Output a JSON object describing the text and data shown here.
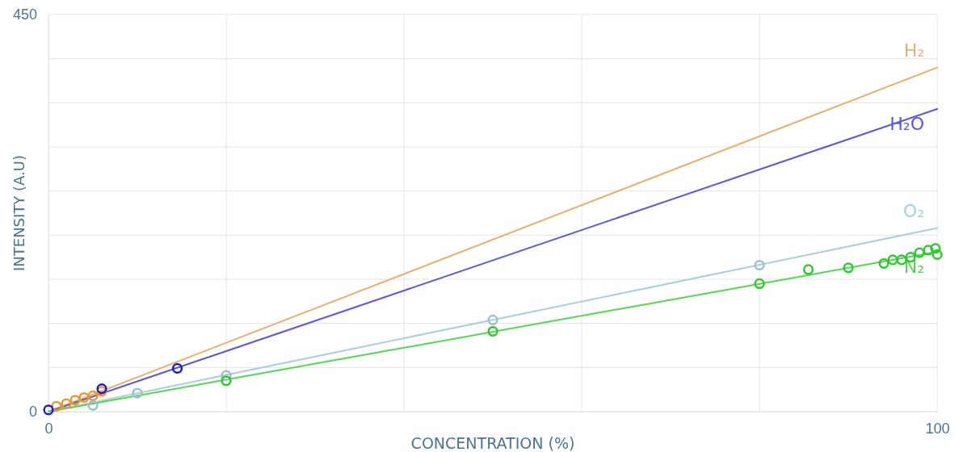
{
  "chart_data": {
    "type": "scatter",
    "xlabel": "CONCENTRATION (%)",
    "ylabel": "INTENSITY (A.U)",
    "xlim": [
      0,
      100
    ],
    "ylim": [
      0,
      450
    ],
    "xticks": [
      0,
      {
        "value": 20,
        "label": null
      },
      {
        "value": 40,
        "label": null
      },
      {
        "value": 60,
        "label": null
      },
      {
        "value": 80,
        "label": null
      },
      100
    ],
    "yticks": [
      0,
      {
        "value": 50,
        "label": null
      },
      {
        "value": 100,
        "label": null
      },
      {
        "value": 150,
        "label": null
      },
      {
        "value": 200,
        "label": null
      },
      {
        "value": 250,
        "label": null
      },
      {
        "value": 300,
        "label": null
      },
      {
        "value": 350,
        "label": null
      },
      {
        "value": 400,
        "label": null
      },
      450
    ],
    "grid": true,
    "marker": "circle",
    "line_style": "solid",
    "series": [
      {
        "type": "line",
        "marker": "none",
        "name": "H₂",
        "color": "#e8b070",
        "x": [
          0,
          100
        ],
        "values": [
          0,
          390
        ]
      },
      {
        "type": "line",
        "marker": "none",
        "name": "H₂O",
        "color": "#5a5ad8",
        "x": [
          0,
          100
        ],
        "values": [
          0,
          343
        ]
      },
      {
        "type": "line",
        "marker": "none",
        "name": "O₂",
        "color": "#a8d0dc",
        "x": [
          0,
          100
        ],
        "values": [
          0,
          208
        ]
      },
      {
        "type": "line",
        "marker": "none",
        "name": "N₂",
        "color": "#50d850",
        "x": [
          0,
          100
        ],
        "values": [
          0,
          181
        ]
      },
      {
        "color": "#e89a30",
        "x": [
          0.9,
          2,
          3,
          4,
          5,
          6
        ],
        "values": [
          6,
          9,
          13,
          16,
          18,
          23
        ]
      },
      {
        "color": "#1a1ac8",
        "x": [
          0,
          6,
          14.5
        ],
        "values": [
          2,
          26,
          49
        ]
      },
      {
        "color": "#9ec0d0",
        "x": [
          5,
          10,
          20,
          50,
          80
        ],
        "values": [
          7,
          21,
          41,
          104,
          166
        ]
      },
      {
        "color": "#30c830",
        "x": [
          20,
          50,
          80,
          85.5,
          90,
          94,
          95,
          96,
          97,
          98,
          99,
          99.8,
          100
        ],
        "values": [
          35,
          91,
          145,
          161,
          163,
          168,
          172,
          172,
          175,
          180,
          183,
          185,
          178
        ]
      }
    ]
  }
}
